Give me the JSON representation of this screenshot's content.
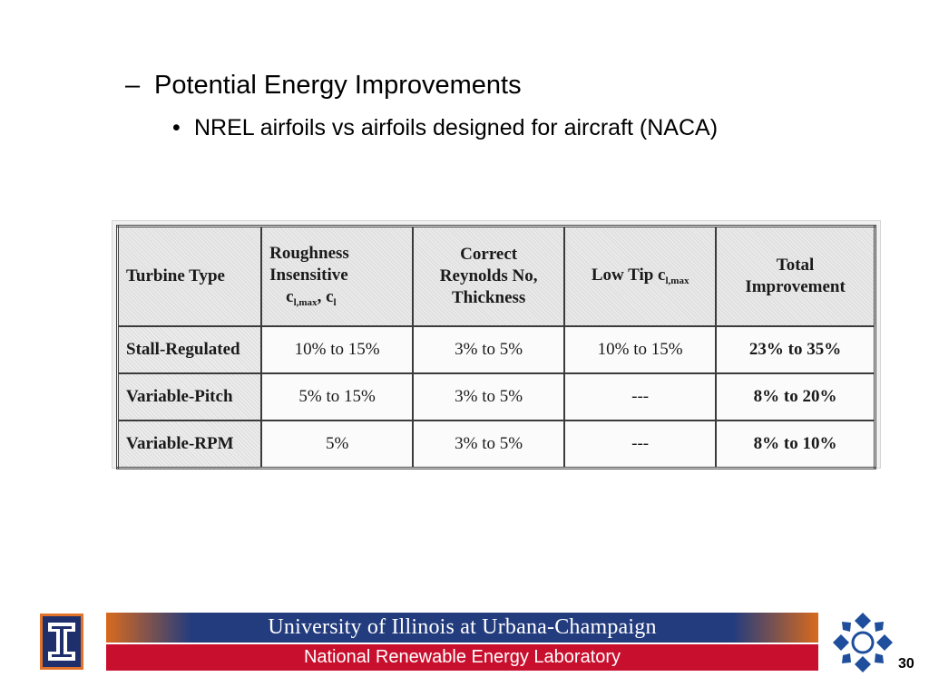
{
  "bullets": {
    "level1_marker": "–",
    "level1": "Potential Energy Improvements",
    "level2_marker": "•",
    "level2": "NREL airfoils vs airfoils designed for aircraft (NACA)"
  },
  "table": {
    "headers": {
      "turbine_type": "Turbine Type",
      "roughness_line1": "Roughness",
      "roughness_line2": "Insensitive",
      "roughness_c1": "c",
      "roughness_c1_sub": "l,max",
      "roughness_sep": ", ",
      "roughness_c2": "c",
      "roughness_c2_sub": "l",
      "reynolds_line1": "Correct",
      "reynolds_line2": "Reynolds No,",
      "reynolds_line3": "Thickness",
      "lowtip_text": "Low Tip c",
      "lowtip_sub": "l,max",
      "total_line1": "Total",
      "total_line2": "Improvement"
    },
    "rows": [
      {
        "type": "Stall-Regulated",
        "roughness": "10% to 15%",
        "reynolds": "3% to 5%",
        "lowtip": "10% to 15%",
        "total": "23% to 35%"
      },
      {
        "type": "Variable-Pitch",
        "roughness": "5% to 15%",
        "reynolds": "3% to 5%",
        "lowtip": "---",
        "total": "8% to 20%"
      },
      {
        "type": "Variable-RPM",
        "roughness": "5%",
        "reynolds": "3% to 5%",
        "lowtip": "---",
        "total": "8% to 10%"
      }
    ]
  },
  "footer": {
    "university": "University of Illinois at Urbana-Champaign",
    "lab": "National Renewable Energy Laboratory",
    "page_number": "30",
    "left_logo_icon": "illinois-block-i-icon",
    "right_logo_icon": "nrel-diamond-ring-icon"
  },
  "colors": {
    "illinois_blue": "#233c7e",
    "illinois_orange": "#d86a1e",
    "nrel_red": "#c8102e",
    "nrel_logo_blue": "#1f4f9c"
  }
}
